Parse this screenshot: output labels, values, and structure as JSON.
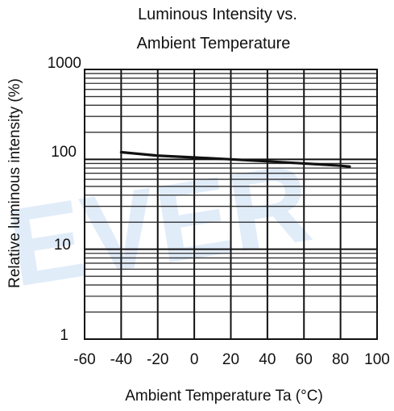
{
  "chart_data": {
    "type": "line",
    "title_lines": [
      "Luminous Intensity vs.",
      "Ambient Temperature"
    ],
    "xlabel": "Ambient Temperature Ta (°C)",
    "ylabel": "Relative luminous intensity (%)",
    "xlim": [
      -60,
      100
    ],
    "ylim": [
      1,
      1000
    ],
    "y_scale": "log",
    "grid": true,
    "x_ticks": [
      -60,
      -40,
      -20,
      0,
      20,
      40,
      60,
      80,
      100
    ],
    "y_ticks": [
      1,
      10,
      100,
      1000
    ],
    "watermark_text": "EVER",
    "colors": {
      "line": "#111111",
      "grid": "#111111",
      "minor_grid": "#222222",
      "watermark": "#dbe9f8"
    },
    "series": [
      {
        "points": [
          {
            "x": -40,
            "y": 120
          },
          {
            "x": -20,
            "y": 110
          },
          {
            "x": 0,
            "y": 105
          },
          {
            "x": 20,
            "y": 100
          },
          {
            "x": 40,
            "y": 95
          },
          {
            "x": 60,
            "y": 90
          },
          {
            "x": 80,
            "y": 85
          },
          {
            "x": 85,
            "y": 83
          }
        ]
      }
    ]
  }
}
